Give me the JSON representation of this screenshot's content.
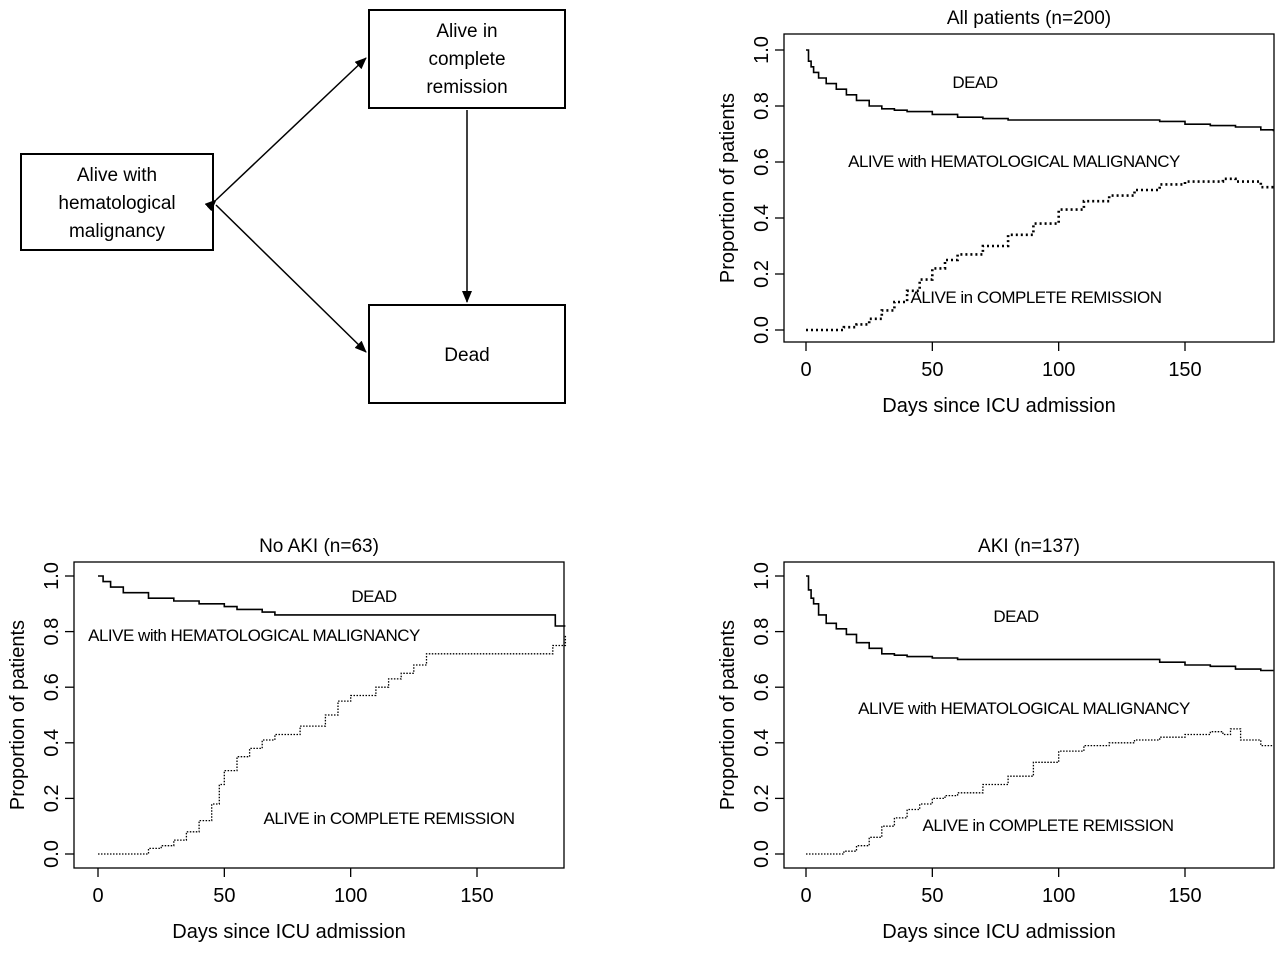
{
  "diagram": {
    "states": {
      "alive_malignancy": [
        "Alive with",
        "hematological",
        "malignancy"
      ],
      "alive_remission": [
        "Alive in",
        "complete",
        "remission"
      ],
      "dead": [
        "Dead"
      ]
    }
  },
  "chart_data": [
    {
      "type": "line",
      "title": "All patients (n=200)",
      "xlabel": "Days since ICU admission",
      "ylabel": "Proportion of patients",
      "xlim": [
        0,
        185
      ],
      "ylim": [
        0,
        1
      ],
      "xticks": [
        0,
        50,
        100,
        150
      ],
      "yticks": [
        "0.0",
        "0.2",
        "0.4",
        "0.6",
        "0.8",
        "1.0"
      ],
      "grid": false,
      "region_labels": {
        "dead": "DEAD",
        "malignancy": "ALIVE with HEMATOLOGICAL MALIGNANCY",
        "remission": "ALIVE in COMPLETE REMISSION"
      },
      "series": [
        {
          "style": "solid",
          "x": [
            0,
            1,
            2,
            3,
            5,
            8,
            12,
            16,
            20,
            25,
            30,
            35,
            40,
            50,
            60,
            70,
            80,
            100,
            120,
            140,
            150,
            160,
            170,
            180,
            185
          ],
          "y": [
            1.0,
            0.96,
            0.94,
            0.92,
            0.9,
            0.88,
            0.86,
            0.84,
            0.82,
            0.8,
            0.79,
            0.785,
            0.78,
            0.77,
            0.76,
            0.755,
            0.75,
            0.75,
            0.75,
            0.745,
            0.735,
            0.73,
            0.725,
            0.715,
            0.71
          ]
        },
        {
          "style": "dotted",
          "x": [
            0,
            10,
            15,
            20,
            25,
            30,
            35,
            40,
            45,
            50,
            55,
            60,
            70,
            80,
            90,
            100,
            110,
            120,
            130,
            140,
            150,
            160,
            165,
            170,
            180,
            185
          ],
          "y": [
            0.0,
            0.0,
            0.01,
            0.02,
            0.04,
            0.07,
            0.1,
            0.14,
            0.18,
            0.22,
            0.25,
            0.27,
            0.3,
            0.34,
            0.38,
            0.43,
            0.46,
            0.48,
            0.5,
            0.52,
            0.53,
            0.53,
            0.54,
            0.53,
            0.51,
            0.52
          ]
        }
      ]
    },
    {
      "type": "line",
      "title": "No AKI (n=63)",
      "xlabel": "Days since ICU admission",
      "ylabel": "Proportion of patients",
      "xlim": [
        0,
        185
      ],
      "ylim": [
        0,
        1
      ],
      "xticks": [
        0,
        50,
        100,
        150
      ],
      "yticks": [
        "0.0",
        "0.2",
        "0.4",
        "0.6",
        "0.8",
        "1.0"
      ],
      "grid": false,
      "region_labels": {
        "dead": "DEAD",
        "malignancy": "ALIVE with HEMATOLOGICAL MALIGNANCY",
        "remission": "ALIVE in COMPLETE REMISSION"
      },
      "series": [
        {
          "style": "solid",
          "x": [
            0,
            2,
            5,
            10,
            20,
            30,
            40,
            50,
            55,
            65,
            70,
            90,
            110,
            130,
            150,
            170,
            180,
            181,
            185
          ],
          "y": [
            1.0,
            0.98,
            0.96,
            0.94,
            0.92,
            0.91,
            0.9,
            0.89,
            0.88,
            0.87,
            0.86,
            0.86,
            0.86,
            0.86,
            0.86,
            0.86,
            0.86,
            0.82,
            0.82
          ]
        },
        {
          "style": "dotted",
          "x": [
            0,
            10,
            20,
            25,
            30,
            35,
            40,
            45,
            48,
            50,
            55,
            60,
            65,
            70,
            80,
            90,
            95,
            100,
            110,
            115,
            120,
            125,
            130,
            140,
            150,
            160,
            170,
            180,
            185
          ],
          "y": [
            0.0,
            0.0,
            0.02,
            0.03,
            0.05,
            0.08,
            0.12,
            0.18,
            0.25,
            0.3,
            0.35,
            0.38,
            0.41,
            0.43,
            0.46,
            0.5,
            0.55,
            0.57,
            0.6,
            0.63,
            0.65,
            0.68,
            0.72,
            0.72,
            0.72,
            0.72,
            0.72,
            0.75,
            0.79
          ]
        }
      ]
    },
    {
      "type": "line",
      "title": "AKI (n=137)",
      "xlabel": "Days since ICU admission",
      "ylabel": "Proportion of patients",
      "xlim": [
        0,
        185
      ],
      "ylim": [
        0,
        1
      ],
      "xticks": [
        0,
        50,
        100,
        150
      ],
      "yticks": [
        "0.0",
        "0.2",
        "0.4",
        "0.6",
        "0.8",
        "1.0"
      ],
      "grid": false,
      "region_labels": {
        "dead": "DEAD",
        "malignancy": "ALIVE with HEMATOLOGICAL MALIGNANCY",
        "remission": "ALIVE in COMPLETE REMISSION"
      },
      "series": [
        {
          "style": "solid",
          "x": [
            0,
            1,
            2,
            3,
            5,
            8,
            12,
            16,
            20,
            25,
            30,
            35,
            40,
            50,
            60,
            70,
            80,
            100,
            120,
            140,
            150,
            160,
            170,
            180,
            185
          ],
          "y": [
            1.0,
            0.95,
            0.92,
            0.9,
            0.86,
            0.83,
            0.81,
            0.79,
            0.76,
            0.74,
            0.72,
            0.715,
            0.71,
            0.705,
            0.7,
            0.7,
            0.7,
            0.7,
            0.7,
            0.69,
            0.68,
            0.675,
            0.665,
            0.66,
            0.66
          ]
        },
        {
          "style": "dotted",
          "x": [
            0,
            10,
            15,
            20,
            25,
            30,
            35,
            40,
            45,
            50,
            55,
            60,
            70,
            80,
            90,
            100,
            110,
            120,
            130,
            140,
            150,
            160,
            165,
            168,
            172,
            180,
            185
          ],
          "y": [
            0.0,
            0.0,
            0.01,
            0.03,
            0.06,
            0.1,
            0.13,
            0.16,
            0.18,
            0.2,
            0.21,
            0.22,
            0.25,
            0.28,
            0.33,
            0.37,
            0.39,
            0.4,
            0.41,
            0.42,
            0.43,
            0.44,
            0.43,
            0.45,
            0.41,
            0.39,
            0.39
          ]
        }
      ]
    }
  ]
}
